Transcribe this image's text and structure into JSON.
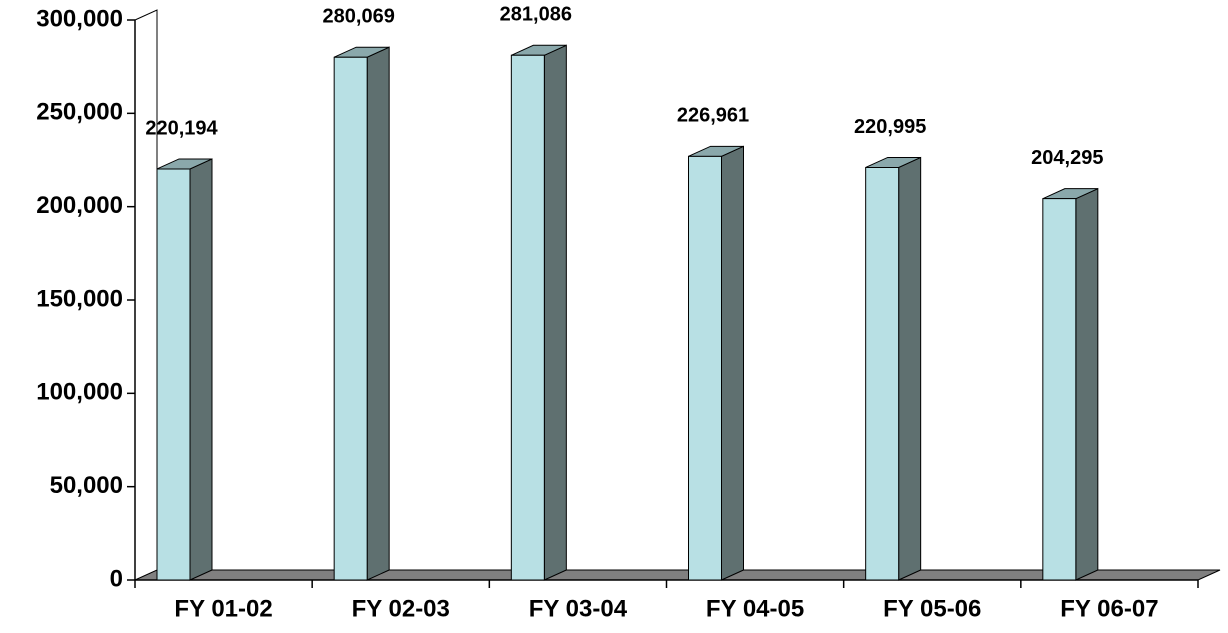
{
  "chart_data": {
    "type": "bar3d",
    "categories": [
      "FY 01-02",
      "FY 02-03",
      "FY 03-04",
      "FY 04-05",
      "FY 05-06",
      "FY 06-07"
    ],
    "values": [
      220194,
      280069,
      281086,
      226961,
      220995,
      204295
    ],
    "value_labels": [
      "220,194",
      "280,069",
      "281,086",
      "226,961",
      "220,995",
      "204,295"
    ],
    "color": "#b8e0e4",
    "ylim": [
      0,
      300000
    ],
    "yticks": [
      0,
      {
        "value": 50000,
        "label": "50,000"
      },
      {
        "value": 100000,
        "label": "100,000"
      },
      {
        "value": 150000,
        "label": "150,000"
      },
      {
        "value": 200000,
        "label": "200,000"
      },
      {
        "value": 250000,
        "label": "250,000"
      },
      {
        "value": 300000,
        "label": "300,000"
      }
    ]
  }
}
